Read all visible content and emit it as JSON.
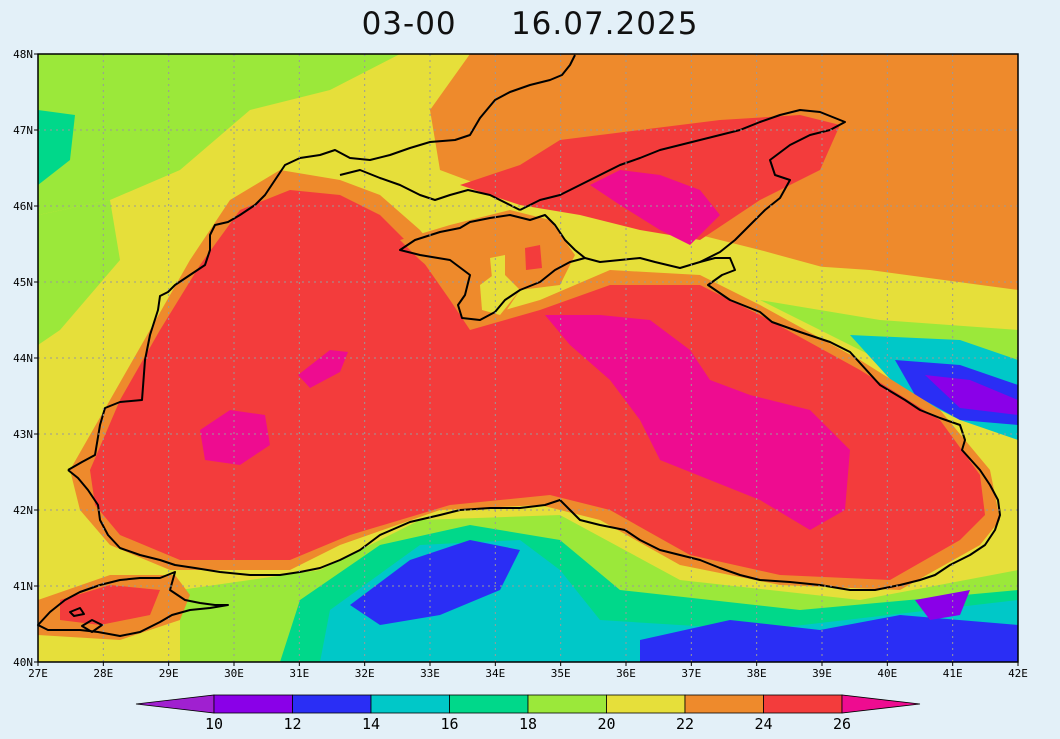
{
  "title": {
    "time": "03-00",
    "date": "16.07.2025"
  },
  "map": {
    "lon_range": [
      27,
      42
    ],
    "lat_range": [
      40,
      48
    ],
    "lon_labels": [
      "27E",
      "28E",
      "29E",
      "30E",
      "31E",
      "32E",
      "33E",
      "34E",
      "35E",
      "36E",
      "37E",
      "38E",
      "39E",
      "40E",
      "41E",
      "42E"
    ],
    "lat_labels": [
      "40N",
      "41N",
      "42N",
      "43N",
      "44N",
      "45N",
      "46N",
      "47N",
      "48N"
    ],
    "graticule": "dotted",
    "field": "sea surface temperature"
  },
  "colorbar": {
    "tick_labels": [
      "10",
      "12",
      "14",
      "16",
      "18",
      "20",
      "22",
      "24",
      "26"
    ],
    "bins": [
      {
        "range": "<10",
        "color": "#a020d0"
      },
      {
        "range": "10-12",
        "color": "#8a00e8"
      },
      {
        "range": "12-14",
        "color": "#2a2ef5"
      },
      {
        "range": "14-16",
        "color": "#00c8c8"
      },
      {
        "range": "16-18",
        "color": "#00d88a"
      },
      {
        "range": "18-20",
        "color": "#9be83a"
      },
      {
        "range": "20-22",
        "color": "#e6df3a"
      },
      {
        "range": "22-24",
        "color": "#ee8a2c"
      },
      {
        "range": "24-26",
        "color": "#f33c3c"
      },
      {
        "range": ">26",
        "color": "#ee0c90"
      }
    ]
  }
}
